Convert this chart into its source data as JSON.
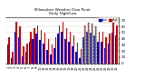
{
  "title": "Milwaukee Weather Dew Point",
  "subtitle": "Daily High/Low",
  "bg_color": "#ffffff",
  "plot_bg": "#ffffff",
  "high_color": "#cc0000",
  "low_color": "#0000cc",
  "days": [
    1,
    2,
    3,
    4,
    5,
    6,
    7,
    8,
    9,
    10,
    11,
    12,
    13,
    14,
    15,
    16,
    17,
    18,
    19,
    20,
    21,
    22,
    23,
    24,
    25,
    26,
    27,
    28,
    29,
    30,
    31
  ],
  "highs": [
    42,
    18,
    68,
    60,
    28,
    32,
    52,
    58,
    62,
    55,
    50,
    40,
    30,
    42,
    62,
    68,
    57,
    52,
    46,
    33,
    23,
    62,
    67,
    65,
    60,
    52,
    52,
    43,
    48,
    68,
    62
  ],
  "lows": [
    30,
    8,
    52,
    42,
    12,
    18,
    35,
    40,
    48,
    38,
    32,
    22,
    15,
    25,
    48,
    52,
    40,
    35,
    28,
    18,
    8,
    42,
    52,
    50,
    45,
    35,
    35,
    25,
    32,
    50,
    45
  ],
  "dashed_indices": [
    21,
    22,
    23,
    24
  ],
  "ylim": [
    0,
    75
  ],
  "yticks": [
    0,
    10,
    20,
    30,
    40,
    50,
    60,
    70
  ],
  "xtick_every": 1,
  "legend_labels": [
    "Low",
    "High"
  ]
}
